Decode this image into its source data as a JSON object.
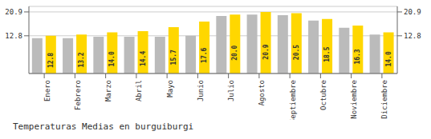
{
  "chart_data": {
    "type": "bar",
    "title": "Temperaturas Medias en burguiburgi",
    "categories": [
      "Enero",
      "Febrero",
      "Marzo",
      "Abril",
      "Mayo",
      "Junio",
      "Julio",
      "Agosto",
      "Septiembre",
      "Octubre",
      "Noviembre",
      "Diciembre"
    ],
    "series": [
      {
        "color": "#BBBBBB",
        "values": [
          12.0,
          12.0,
          12.5,
          12.5,
          12.5,
          12.8,
          19.5,
          20.0,
          19.8,
          18.0,
          15.5,
          13.2
        ]
      },
      {
        "color": "#FFD700",
        "values": [
          12.8,
          13.2,
          14.0,
          14.4,
          15.7,
          17.6,
          20.0,
          20.9,
          20.5,
          18.5,
          16.3,
          14.0
        ],
        "value_labels": [
          "12.8",
          "13.2",
          "14.0",
          "14.4",
          "15.7",
          "17.6",
          "20.0",
          "20.9",
          "20.5",
          "18.5",
          "16.3",
          "14.0"
        ],
        "data_labels": true
      }
    ],
    "ylim": [
      0,
      22.781
    ],
    "yticks": [
      12.8,
      20.9
    ],
    "y2lim": [
      0,
      22.781
    ],
    "y2ticks": [
      12.8,
      20.9
    ],
    "grid": true
  }
}
